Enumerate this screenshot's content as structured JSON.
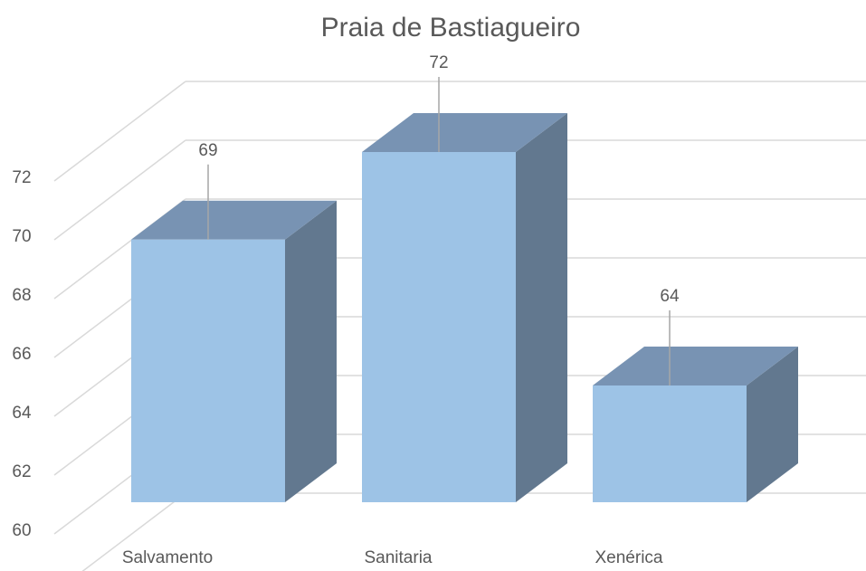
{
  "chart_data": {
    "type": "bar3d",
    "title": "Praia de Bastiagueiro",
    "categories": [
      "Salvamento",
      "Sanitaria",
      "Xenérica"
    ],
    "values": [
      69,
      72,
      64
    ],
    "color": "#9dc3e6",
    "ylim": [
      60,
      74
    ],
    "yticks": [
      60,
      62,
      64,
      66,
      68,
      70,
      72
    ],
    "grid": true
  }
}
